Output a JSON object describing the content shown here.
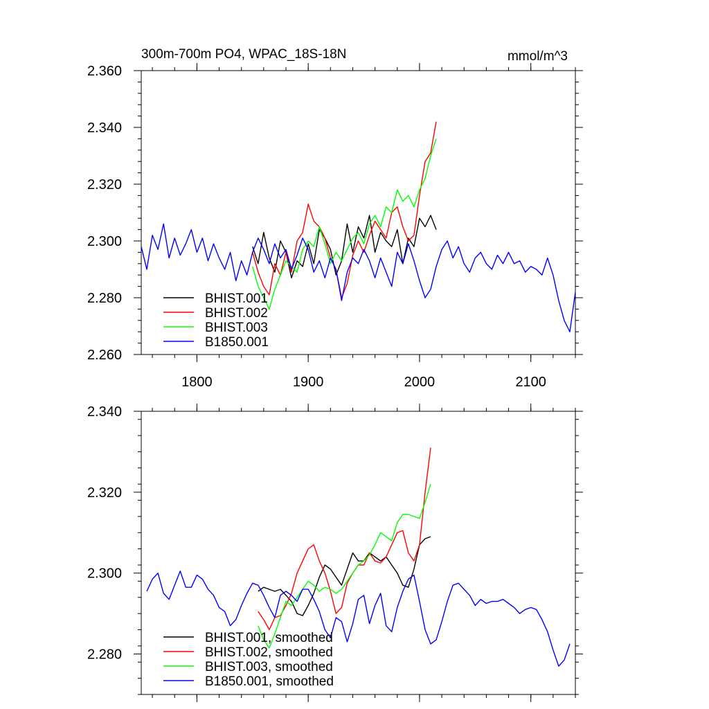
{
  "chart_data": [
    {
      "type": "line",
      "title": "300m-700m PO4, WPAC_18S-18N",
      "units": "mmol/m^3",
      "xlim": [
        1750,
        2140
      ],
      "ylim": [
        2.26,
        2.36
      ],
      "xticks": [
        1800,
        1900,
        2000,
        2100
      ],
      "yticks": [
        2.26,
        2.28,
        2.3,
        2.32,
        2.34,
        2.36
      ],
      "ytick_labels": [
        "2.260",
        "2.280",
        "2.300",
        "2.320",
        "2.340",
        "2.360"
      ],
      "xtick_labels": [
        "1800",
        "1900",
        "2000",
        "2100"
      ],
      "legend_position": "bottom-left",
      "series": [
        {
          "name": "BHIST.001",
          "color": "#000000",
          "x": [
            1850,
            1855,
            1860,
            1865,
            1870,
            1875,
            1880,
            1885,
            1890,
            1895,
            1900,
            1905,
            1910,
            1915,
            1920,
            1925,
            1930,
            1935,
            1940,
            1945,
            1950,
            1955,
            1960,
            1965,
            1970,
            1975,
            1980,
            1985,
            1990,
            1995,
            2000,
            2005,
            2010,
            2015
          ],
          "y": [
            2.298,
            2.292,
            2.303,
            2.294,
            2.289,
            2.3,
            2.296,
            2.287,
            2.293,
            2.291,
            2.299,
            2.292,
            2.304,
            2.301,
            2.297,
            2.288,
            2.293,
            2.306,
            2.296,
            2.305,
            2.301,
            2.309,
            2.296,
            2.303,
            2.3,
            2.298,
            2.304,
            2.292,
            2.301,
            2.298,
            2.308,
            2.305,
            2.309,
            2.304
          ]
        },
        {
          "name": "BHIST.002",
          "color": "#ff0000",
          "x": [
            1850,
            1855,
            1860,
            1865,
            1870,
            1875,
            1880,
            1885,
            1890,
            1895,
            1900,
            1905,
            1910,
            1915,
            1920,
            1925,
            1930,
            1935,
            1940,
            1945,
            1950,
            1955,
            1960,
            1965,
            1970,
            1975,
            1980,
            1985,
            1990,
            1995,
            2000,
            2005,
            2010,
            2015
          ],
          "y": [
            2.296,
            2.289,
            2.284,
            2.281,
            2.292,
            2.288,
            2.296,
            2.289,
            2.3,
            2.303,
            2.313,
            2.307,
            2.305,
            2.301,
            2.294,
            2.29,
            2.28,
            2.285,
            2.295,
            2.3,
            2.296,
            2.302,
            2.307,
            2.304,
            2.301,
            2.31,
            2.312,
            2.305,
            2.3,
            2.302,
            2.316,
            2.328,
            2.331,
            2.342
          ]
        },
        {
          "name": "BHIST.003",
          "color": "#00ff00",
          "x": [
            1850,
            1855,
            1860,
            1865,
            1870,
            1875,
            1880,
            1885,
            1890,
            1895,
            1900,
            1905,
            1910,
            1915,
            1920,
            1925,
            1930,
            1935,
            1940,
            1945,
            1950,
            1955,
            1960,
            1965,
            1970,
            1975,
            1980,
            1985,
            1990,
            1995,
            2000,
            2005,
            2010,
            2015
          ],
          "y": [
            2.291,
            2.284,
            2.28,
            2.276,
            2.283,
            2.288,
            2.293,
            2.291,
            2.289,
            2.297,
            2.3,
            2.298,
            2.305,
            2.299,
            2.292,
            2.296,
            2.293,
            2.297,
            2.301,
            2.303,
            2.299,
            2.306,
            2.309,
            2.305,
            2.312,
            2.31,
            2.318,
            2.314,
            2.316,
            2.312,
            2.318,
            2.322,
            2.33,
            2.336
          ]
        },
        {
          "name": "B1850.001",
          "color": "#0000ff",
          "x": [
            1750,
            1755,
            1760,
            1765,
            1770,
            1775,
            1780,
            1785,
            1790,
            1795,
            1800,
            1805,
            1810,
            1815,
            1820,
            1825,
            1830,
            1835,
            1840,
            1845,
            1850,
            1855,
            1860,
            1865,
            1870,
            1875,
            1880,
            1885,
            1890,
            1895,
            1900,
            1905,
            1910,
            1915,
            1920,
            1925,
            1930,
            1935,
            1940,
            1945,
            1950,
            1955,
            1960,
            1965,
            1970,
            1975,
            1980,
            1985,
            1990,
            1995,
            2000,
            2005,
            2010,
            2015,
            2020,
            2025,
            2030,
            2035,
            2040,
            2045,
            2050,
            2055,
            2060,
            2065,
            2070,
            2075,
            2080,
            2085,
            2090,
            2095,
            2100,
            2105,
            2110,
            2115,
            2120,
            2125,
            2130,
            2135,
            2140
          ],
          "y": [
            2.298,
            2.29,
            2.302,
            2.297,
            2.306,
            2.294,
            2.301,
            2.295,
            2.299,
            2.304,
            2.296,
            2.301,
            2.293,
            2.299,
            2.294,
            2.29,
            2.296,
            2.286,
            2.293,
            2.288,
            2.296,
            2.301,
            2.297,
            2.292,
            2.299,
            2.294,
            2.297,
            2.29,
            2.295,
            2.301,
            2.297,
            2.289,
            2.293,
            2.287,
            2.294,
            2.29,
            2.279,
            2.289,
            2.294,
            2.292,
            2.297,
            2.293,
            2.287,
            2.294,
            2.289,
            2.284,
            2.296,
            2.292,
            2.299,
            2.293,
            2.286,
            2.28,
            2.283,
            2.291,
            2.297,
            2.3,
            2.294,
            2.298,
            2.292,
            2.289,
            2.294,
            2.296,
            2.292,
            2.29,
            2.295,
            2.292,
            2.296,
            2.292,
            2.293,
            2.289,
            2.291,
            2.29,
            2.288,
            2.294,
            2.288,
            2.279,
            2.272,
            2.268,
            2.282
          ]
        }
      ]
    },
    {
      "type": "line",
      "title": "",
      "xlim": [
        1750,
        2140
      ],
      "ylim": [
        2.27,
        2.34
      ],
      "xticks": [
        1800,
        1900,
        2000,
        2100
      ],
      "yticks": [
        2.28,
        2.3,
        2.32,
        2.34
      ],
      "ytick_labels": [
        "2.280",
        "2.300",
        "2.320",
        "2.340"
      ],
      "legend_position": "bottom-left",
      "series": [
        {
          "name": "BHIST.001, smoothed",
          "color": "#000000",
          "x": [
            1855,
            1860,
            1865,
            1870,
            1875,
            1880,
            1885,
            1890,
            1895,
            1900,
            1905,
            1910,
            1915,
            1920,
            1925,
            1930,
            1935,
            1940,
            1945,
            1950,
            1955,
            1960,
            1965,
            1970,
            1975,
            1980,
            1985,
            1990,
            1995,
            2000,
            2005,
            2010
          ],
          "y": [
            2.2955,
            2.2965,
            2.296,
            2.2955,
            2.296,
            2.2945,
            2.293,
            2.29,
            2.2895,
            2.292,
            2.295,
            2.299,
            2.302,
            2.301,
            2.299,
            2.297,
            2.301,
            2.305,
            2.303,
            2.303,
            2.305,
            2.304,
            2.303,
            2.304,
            2.302,
            2.3,
            2.297,
            2.2965,
            2.301,
            2.307,
            2.3085,
            2.309
          ]
        },
        {
          "name": "BHIST.002, smoothed",
          "color": "#ff0000",
          "x": [
            1855,
            1860,
            1865,
            1870,
            1875,
            1880,
            1885,
            1890,
            1895,
            1900,
            1905,
            1910,
            1915,
            1920,
            1925,
            1930,
            1935,
            1940,
            1945,
            1950,
            1955,
            1960,
            1965,
            1970,
            1975,
            1980,
            1985,
            1990,
            1995,
            2000,
            2005,
            2010
          ],
          "y": [
            2.2905,
            2.2885,
            2.286,
            2.289,
            2.2895,
            2.292,
            2.295,
            2.3,
            2.303,
            2.306,
            2.307,
            2.303,
            2.3,
            2.2955,
            2.29,
            2.2915,
            2.2975,
            2.3,
            2.302,
            2.302,
            2.305,
            2.303,
            2.3025,
            2.304,
            2.307,
            2.31,
            2.3105,
            2.305,
            2.303,
            2.307,
            2.32,
            2.331
          ]
        },
        {
          "name": "BHIST.003, smoothed",
          "color": "#00ff00",
          "x": [
            1855,
            1860,
            1865,
            1870,
            1875,
            1880,
            1885,
            1890,
            1895,
            1900,
            1905,
            1910,
            1915,
            1920,
            1925,
            1930,
            1935,
            1940,
            1945,
            1950,
            1955,
            1960,
            1965,
            1970,
            1975,
            1980,
            1985,
            1990,
            1995,
            2000,
            2005,
            2010
          ],
          "y": [
            2.287,
            2.2835,
            2.2815,
            2.285,
            2.289,
            2.293,
            2.292,
            2.294,
            2.296,
            2.298,
            2.297,
            2.2955,
            2.2965,
            2.296,
            2.295,
            2.296,
            2.298,
            2.3,
            2.302,
            2.303,
            2.3045,
            2.307,
            2.31,
            2.309,
            2.308,
            2.3125,
            2.3145,
            2.3145,
            2.314,
            2.3135,
            2.3175,
            2.322
          ]
        },
        {
          "name": "B1850.001, smoothed",
          "color": "#0000ff",
          "x": [
            1755,
            1760,
            1765,
            1770,
            1775,
            1780,
            1785,
            1790,
            1795,
            1800,
            1805,
            1810,
            1815,
            1820,
            1825,
            1830,
            1835,
            1840,
            1845,
            1850,
            1855,
            1860,
            1865,
            1870,
            1875,
            1880,
            1885,
            1890,
            1895,
            1900,
            1905,
            1910,
            1915,
            1920,
            1925,
            1930,
            1935,
            1940,
            1945,
            1950,
            1955,
            1960,
            1965,
            1970,
            1975,
            1980,
            1985,
            1990,
            1995,
            2000,
            2005,
            2010,
            2015,
            2020,
            2025,
            2030,
            2035,
            2040,
            2045,
            2050,
            2055,
            2060,
            2065,
            2070,
            2075,
            2080,
            2085,
            2090,
            2095,
            2100,
            2105,
            2110,
            2115,
            2120,
            2125,
            2130,
            2135
          ],
          "y": [
            2.2955,
            2.2985,
            2.3,
            2.295,
            2.2935,
            2.297,
            2.3005,
            2.2965,
            2.2965,
            2.2995,
            2.2985,
            2.296,
            2.2945,
            2.2915,
            2.2905,
            2.287,
            2.2885,
            2.292,
            2.295,
            2.2975,
            2.297,
            2.2945,
            2.2915,
            2.289,
            2.2945,
            2.2955,
            2.2945,
            2.293,
            2.296,
            2.296,
            2.2935,
            2.2905,
            2.286,
            2.284,
            2.289,
            2.288,
            2.283,
            2.2875,
            2.2935,
            2.2945,
            2.2875,
            2.292,
            2.295,
            2.287,
            2.2855,
            2.2915,
            2.2955,
            2.2985,
            2.2995,
            2.293,
            2.286,
            2.2825,
            2.2835,
            2.288,
            2.293,
            2.297,
            2.2975,
            2.296,
            2.2945,
            2.292,
            2.2935,
            2.2925,
            2.293,
            2.293,
            2.2935,
            2.2925,
            2.2915,
            2.29,
            2.291,
            2.2915,
            2.291,
            2.2885,
            2.2855,
            2.281,
            2.277,
            2.2785,
            2.2825
          ]
        }
      ]
    }
  ]
}
